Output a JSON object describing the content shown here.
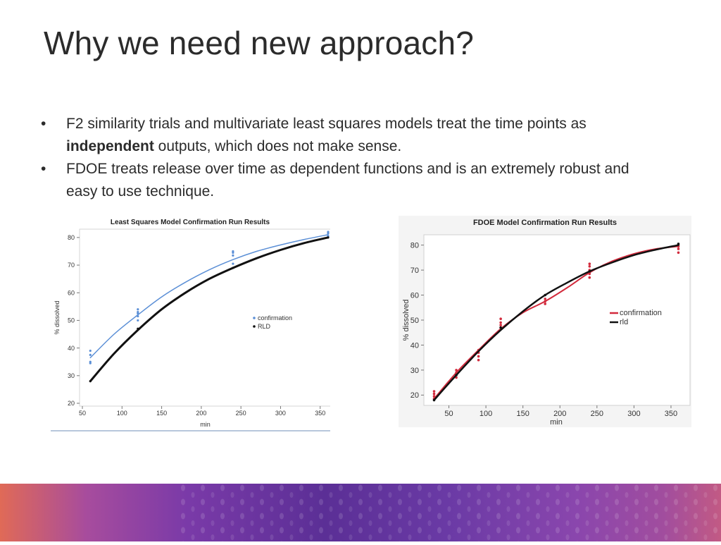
{
  "slide": {
    "title": "Why we need new approach?",
    "bullets": [
      {
        "marker": "•",
        "before": "F2 similarity trials and multivariate least squares models treat the time points as ",
        "bold": "independent",
        "after": " outputs, which does not make sense."
      },
      {
        "marker": "•",
        "before": "FDOE treats release over time as dependent functions and is an extremely robust and easy to use technique.",
        "bold": "",
        "after": ""
      }
    ]
  },
  "colors": {
    "confirmation_blue": "#5b8fd6",
    "rld_black": "#111111",
    "confirmation_red": "#d22a3c",
    "frame_bg": "#f4f4f4"
  },
  "chart_data": [
    {
      "type": "line",
      "title": "Least Squares Model Confirmation Run Results",
      "xlabel": "min",
      "ylabel": "% dissolved",
      "xlim": [
        50,
        360
      ],
      "ylim": [
        20,
        82
      ],
      "xticks": [
        50,
        100,
        150,
        200,
        250,
        300,
        350
      ],
      "yticks": [
        20,
        30,
        40,
        50,
        60,
        70,
        80
      ],
      "grid": false,
      "legend_position": "right-center",
      "series": [
        {
          "name": "confirmation",
          "color": "#5b8fd6",
          "width": 1.5,
          "x": [
            60,
            90,
            120,
            150,
            180,
            210,
            240,
            270,
            300,
            330,
            360
          ],
          "y": [
            36.5,
            45,
            52,
            58.5,
            63.8,
            68.3,
            72,
            75,
            77.3,
            79.3,
            81
          ],
          "points": [
            [
              60,
              35
            ],
            [
              60,
              34.5
            ],
            [
              60,
              37.5
            ],
            [
              60,
              39
            ],
            [
              120,
              50
            ],
            [
              120,
              51.5
            ],
            [
              120,
              52.5
            ],
            [
              120,
              53
            ],
            [
              120,
              54
            ],
            [
              240,
              70.5
            ],
            [
              240,
              73.5
            ],
            [
              240,
              74.5
            ],
            [
              240,
              75
            ],
            [
              360,
              80.5
            ],
            [
              360,
              81.5
            ],
            [
              360,
              82
            ]
          ]
        },
        {
          "name": "RLD",
          "color": "#111111",
          "width": 3,
          "x": [
            60,
            90,
            120,
            150,
            180,
            210,
            240,
            270,
            300,
            330,
            360
          ],
          "y": [
            28,
            38,
            46.5,
            54,
            60,
            65,
            69,
            72.5,
            75.5,
            78,
            80
          ],
          "points": [
            [
              60,
              28
            ],
            [
              120,
              47
            ],
            [
              240,
              69
            ],
            [
              360,
              80
            ]
          ]
        }
      ]
    },
    {
      "type": "line",
      "title": "FDOE Model Confirmation Run Results",
      "xlabel": "min",
      "ylabel": "% dissolved",
      "xlim": [
        20,
        370
      ],
      "ylim": [
        17,
        83
      ],
      "xticks": [
        50,
        100,
        150,
        200,
        250,
        300,
        350
      ],
      "yticks": [
        20,
        30,
        40,
        50,
        60,
        70,
        80
      ],
      "grid": false,
      "legend_position": "right-center",
      "series": [
        {
          "name": "confirmation",
          "color": "#d22a3c",
          "width": 2,
          "x": [
            30,
            60,
            90,
            120,
            150,
            180,
            210,
            240,
            270,
            300,
            330,
            360
          ],
          "y": [
            18.5,
            29,
            38,
            46.5,
            53,
            57.5,
            63,
            69,
            73.5,
            76.5,
            78.5,
            79.5
          ],
          "points": [
            [
              30,
              18.5
            ],
            [
              30,
              19.5
            ],
            [
              30,
              20.5
            ],
            [
              30,
              21.5
            ],
            [
              60,
              27
            ],
            [
              60,
              28
            ],
            [
              60,
              29
            ],
            [
              60,
              30
            ],
            [
              90,
              34
            ],
            [
              90,
              35.5
            ],
            [
              90,
              37
            ],
            [
              90,
              38
            ],
            [
              120,
              47
            ],
            [
              120,
              48
            ],
            [
              120,
              49
            ],
            [
              120,
              50.5
            ],
            [
              180,
              56.5
            ],
            [
              180,
              57.5
            ],
            [
              180,
              58.5
            ],
            [
              240,
              67
            ],
            [
              240,
              68.5
            ],
            [
              240,
              70
            ],
            [
              240,
              71.5
            ],
            [
              240,
              72.5
            ],
            [
              360,
              77
            ],
            [
              360,
              78.5
            ],
            [
              360,
              79.5
            ],
            [
              360,
              80
            ]
          ]
        },
        {
          "name": "rld",
          "color": "#111111",
          "width": 2.5,
          "x": [
            30,
            60,
            90,
            120,
            150,
            180,
            210,
            240,
            270,
            300,
            330,
            360
          ],
          "y": [
            18,
            28,
            37.5,
            46,
            53.5,
            60,
            65,
            69.5,
            73,
            76,
            78.2,
            80
          ],
          "points": [
            [
              30,
              18
            ],
            [
              60,
              28
            ],
            [
              120,
              47
            ],
            [
              180,
              60
            ],
            [
              240,
              69.5
            ],
            [
              360,
              80.5
            ]
          ]
        }
      ]
    }
  ]
}
